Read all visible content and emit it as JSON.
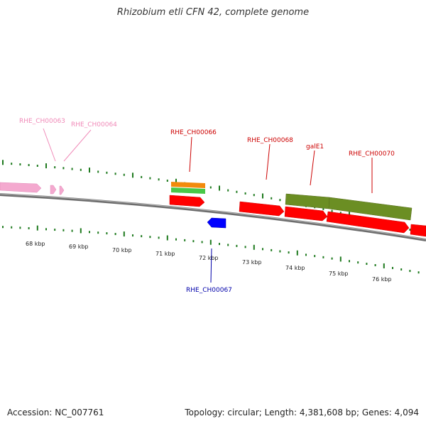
{
  "title": "Rhizobium etli CFN 42, complete genome",
  "footer": {
    "accession": "Accession: NC_007761",
    "summary": "Topology: circular; Length: 4,381,608 bp; Genes: 4,094"
  },
  "colors": {
    "background": "#ffffff",
    "backbone": "#808080",
    "tick": "#1e7a1e",
    "gene_red": "#ff0000",
    "gene_pink": "#f4a9cf",
    "gene_blue": "#0000ff",
    "gene_orange": "#f28a0c",
    "gene_green": "#48c848",
    "gene_olive": "#6b8e23",
    "label_red": "#cc0000",
    "label_pink": "#f08ab8",
    "label_blue": "#0000aa"
  },
  "kbp_labels": [
    "68 kbp",
    "69 kbp",
    "70 kbp",
    "71 kbp",
    "72 kbp",
    "73 kbp",
    "74 kbp",
    "75 kbp",
    "76 kbp"
  ],
  "gene_labels": [
    {
      "name": "RHE_CH00063",
      "color_key": "label_pink"
    },
    {
      "name": "RHE_CH00064",
      "color_key": "label_pink"
    },
    {
      "name": "RHE_CH00066",
      "color_key": "label_red"
    },
    {
      "name": "RHE_CH00068",
      "color_key": "label_red"
    },
    {
      "name": "galE1",
      "color_key": "label_red"
    },
    {
      "name": "RHE_CH00070",
      "color_key": "label_red"
    },
    {
      "name": "RHE_CH00067",
      "color_key": "label_blue"
    }
  ]
}
